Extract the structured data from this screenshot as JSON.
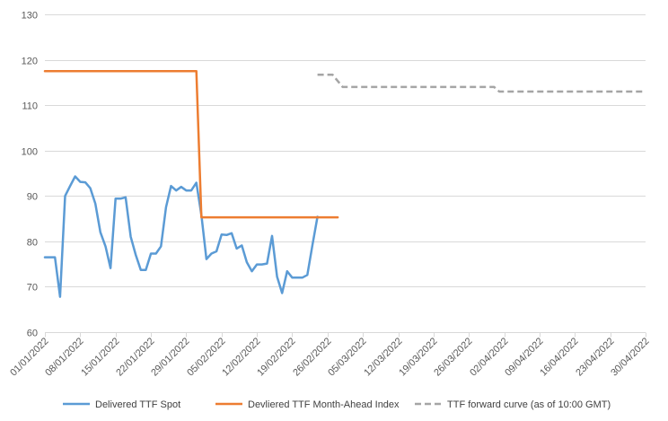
{
  "chart_data": {
    "type": "line",
    "title": "",
    "xlabel": "",
    "ylabel": "",
    "ylim": [
      60,
      130
    ],
    "yticks": [
      60,
      70,
      80,
      90,
      100,
      110,
      120,
      130
    ],
    "xlim": [
      "2022-01-01",
      "2022-04-30"
    ],
    "xtick_labels": [
      "01/01/2022",
      "08/01/2022",
      "15/01/2022",
      "22/01/2022",
      "29/01/2022",
      "05/02/2022",
      "12/02/2022",
      "19/02/2022",
      "26/02/2022",
      "05/03/2022",
      "12/03/2022",
      "19/03/2022",
      "26/03/2022",
      "02/04/2022",
      "09/04/2022",
      "16/04/2022",
      "23/04/2022",
      "30/04/2022"
    ],
    "grid": "horizontal",
    "legend_position": "bottom",
    "series": [
      {
        "name": "Delivered TTF Spot",
        "color": "#5B9BD5",
        "style": "solid",
        "points": [
          [
            "2022-01-01",
            76.5
          ],
          [
            "2022-01-02",
            76.5
          ],
          [
            "2022-01-03",
            76.5
          ],
          [
            "2022-01-04",
            67.8
          ],
          [
            "2022-01-05",
            90.0
          ],
          [
            "2022-01-06",
            92.2
          ],
          [
            "2022-01-07",
            94.3
          ],
          [
            "2022-01-08",
            93.1
          ],
          [
            "2022-01-09",
            93.0
          ],
          [
            "2022-01-10",
            91.7
          ],
          [
            "2022-01-11",
            88.3
          ],
          [
            "2022-01-12",
            82.0
          ],
          [
            "2022-01-13",
            78.9
          ],
          [
            "2022-01-14",
            74.1
          ],
          [
            "2022-01-15",
            89.4
          ],
          [
            "2022-01-16",
            89.4
          ],
          [
            "2022-01-17",
            89.7
          ],
          [
            "2022-01-18",
            81.0
          ],
          [
            "2022-01-19",
            77.0
          ],
          [
            "2022-01-20",
            73.7
          ],
          [
            "2022-01-21",
            73.7
          ],
          [
            "2022-01-22",
            77.3
          ],
          [
            "2022-01-23",
            77.3
          ],
          [
            "2022-01-24",
            78.9
          ],
          [
            "2022-01-25",
            87.5
          ],
          [
            "2022-01-26",
            92.2
          ],
          [
            "2022-01-27",
            91.2
          ],
          [
            "2022-01-28",
            92.0
          ],
          [
            "2022-01-29",
            91.2
          ],
          [
            "2022-01-30",
            91.2
          ],
          [
            "2022-01-31",
            92.9
          ],
          [
            "2022-02-01",
            85.8
          ],
          [
            "2022-02-02",
            76.1
          ],
          [
            "2022-02-03",
            77.3
          ],
          [
            "2022-02-04",
            77.8
          ],
          [
            "2022-02-05",
            81.5
          ],
          [
            "2022-02-06",
            81.4
          ],
          [
            "2022-02-07",
            81.8
          ],
          [
            "2022-02-08",
            78.4
          ],
          [
            "2022-02-09",
            79.1
          ],
          [
            "2022-02-10",
            75.4
          ],
          [
            "2022-02-11",
            73.4
          ],
          [
            "2022-02-12",
            74.9
          ],
          [
            "2022-02-13",
            74.9
          ],
          [
            "2022-02-14",
            75.1
          ],
          [
            "2022-02-15",
            81.2
          ],
          [
            "2022-02-16",
            72.2
          ],
          [
            "2022-02-17",
            68.6
          ],
          [
            "2022-02-18",
            73.4
          ],
          [
            "2022-02-19",
            72.0
          ],
          [
            "2022-02-20",
            72.0
          ],
          [
            "2022-02-21",
            72.0
          ],
          [
            "2022-02-22",
            72.6
          ],
          [
            "2022-02-23",
            79.2
          ],
          [
            "2022-02-24",
            85.4
          ]
        ]
      },
      {
        "name": "Devliered TTF Month-Ahead Index",
        "color": "#ED7D31",
        "style": "solid",
        "points": [
          [
            "2022-01-01",
            117.5
          ],
          [
            "2022-01-31",
            117.5
          ],
          [
            "2022-02-01",
            85.3
          ],
          [
            "2022-02-28",
            85.3
          ]
        ]
      },
      {
        "name": "TTF forward curve (as of 10:00 GMT)",
        "color": "#A5A5A5",
        "style": "dashed",
        "points": [
          [
            "2022-02-24",
            116.7
          ],
          [
            "2022-02-26",
            116.7
          ],
          [
            "2022-02-27",
            116.7
          ],
          [
            "2022-03-01",
            114.0
          ],
          [
            "2022-03-31",
            114.0
          ],
          [
            "2022-04-01",
            113.0
          ],
          [
            "2022-04-30",
            113.0
          ]
        ]
      }
    ]
  }
}
